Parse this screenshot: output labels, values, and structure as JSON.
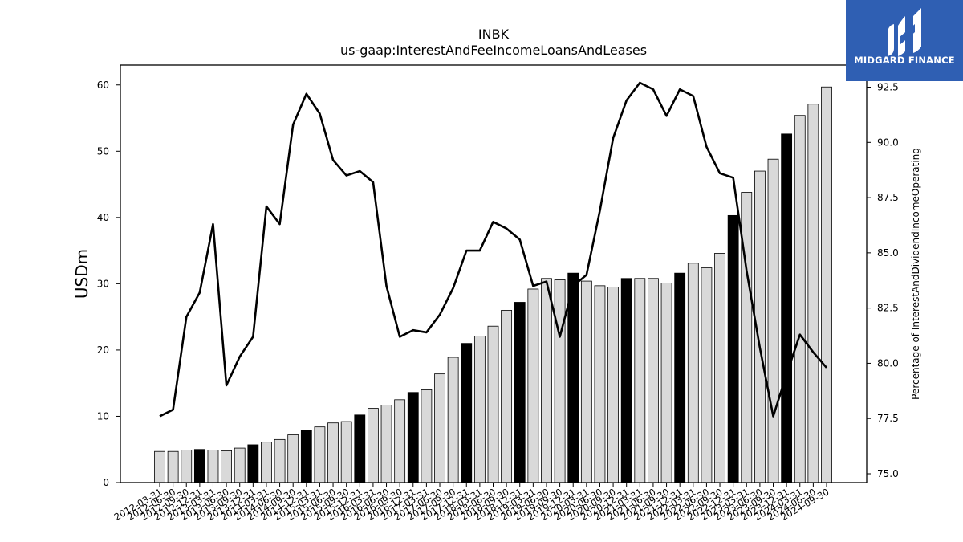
{
  "chart_data": {
    "type": "bar",
    "title": "INBK",
    "subtitle": "us-gaap:InterestAndFeeIncomeLoansAndLeases",
    "ylabel": "USDm",
    "y2label": "Percentage of InterestAndDividendIncomeOperating",
    "ylim": [
      0,
      63
    ],
    "y2lim": [
      74.6,
      93.5
    ],
    "yticks": [
      0,
      10,
      20,
      30,
      40,
      50,
      60
    ],
    "y2ticks": [
      "75.0",
      "77.5",
      "80.0",
      "82.5",
      "85.0",
      "87.5",
      "90.0",
      "92.5"
    ],
    "categories": [
      "2012-03-31",
      "2012-06-30",
      "2012-09-30",
      "2012-12-31",
      "2013-03-31",
      "2013-06-30",
      "2013-09-30",
      "2013-12-31",
      "2014-03-31",
      "2014-06-30",
      "2014-09-30",
      "2014-12-31",
      "2015-03-31",
      "2015-06-30",
      "2015-09-30",
      "2015-12-31",
      "2016-03-31",
      "2016-06-30",
      "2016-09-30",
      "2016-12-31",
      "2017-03-31",
      "2017-06-30",
      "2017-09-30",
      "2017-12-31",
      "2018-03-31",
      "2018-06-30",
      "2018-09-30",
      "2018-12-31",
      "2019-03-31",
      "2019-06-30",
      "2019-09-30",
      "2019-12-31",
      "2020-03-31",
      "2020-06-30",
      "2020-09-30",
      "2020-12-31",
      "2021-03-31",
      "2021-06-30",
      "2021-09-30",
      "2021-12-31",
      "2022-03-31",
      "2022-06-30",
      "2022-09-30",
      "2022-12-31",
      "2023-03-31",
      "2023-06-30",
      "2023-09-30",
      "2023-12-31",
      "2024-03-31",
      "2024-06-30",
      "2024-09-30"
    ],
    "series": [
      {
        "kind": "bar",
        "axis": "left",
        "values": [
          4.7,
          4.7,
          4.9,
          5.0,
          4.9,
          4.8,
          5.2,
          5.7,
          6.1,
          6.5,
          7.2,
          7.9,
          8.4,
          9.0,
          9.2,
          10.2,
          11.2,
          11.7,
          12.5,
          13.6,
          14.0,
          16.4,
          18.9,
          21.0,
          22.1,
          23.6,
          26.0,
          27.2,
          29.2,
          30.8,
          30.6,
          31.6,
          30.4,
          29.7,
          29.5,
          30.8,
          30.8,
          30.8,
          30.1,
          31.6,
          33.1,
          32.4,
          34.6,
          40.3,
          43.8,
          47.0,
          48.8,
          52.6,
          55.4,
          57.1,
          59.7
        ],
        "highlight": [
          false,
          false,
          false,
          true,
          false,
          false,
          false,
          true,
          false,
          false,
          false,
          true,
          false,
          false,
          false,
          true,
          false,
          false,
          false,
          true,
          false,
          false,
          false,
          true,
          false,
          false,
          false,
          true,
          false,
          false,
          false,
          true,
          false,
          false,
          false,
          true,
          false,
          false,
          false,
          true,
          false,
          false,
          false,
          true,
          false,
          false,
          false,
          true,
          false,
          false,
          false
        ]
      },
      {
        "kind": "line",
        "axis": "right",
        "values": [
          77.6,
          77.9,
          82.1,
          83.2,
          86.3,
          79.0,
          80.3,
          81.2,
          87.1,
          86.3,
          90.8,
          92.2,
          91.3,
          89.2,
          88.5,
          88.7,
          88.2,
          83.5,
          81.2,
          81.5,
          81.4,
          82.2,
          83.4,
          85.1,
          85.1,
          86.4,
          86.1,
          85.6,
          83.5,
          83.7,
          81.2,
          83.5,
          84.0,
          86.9,
          90.2,
          91.9,
          92.7,
          92.4,
          91.2,
          92.4,
          92.1,
          89.8,
          88.6,
          88.4,
          84.2,
          80.7,
          77.6,
          79.5,
          81.3,
          80.5,
          79.8
        ]
      }
    ],
    "grid": false,
    "legend": "none"
  },
  "logo": {
    "text": "MIDGARD FINANCE",
    "brand_color": "#2f5fb3"
  }
}
